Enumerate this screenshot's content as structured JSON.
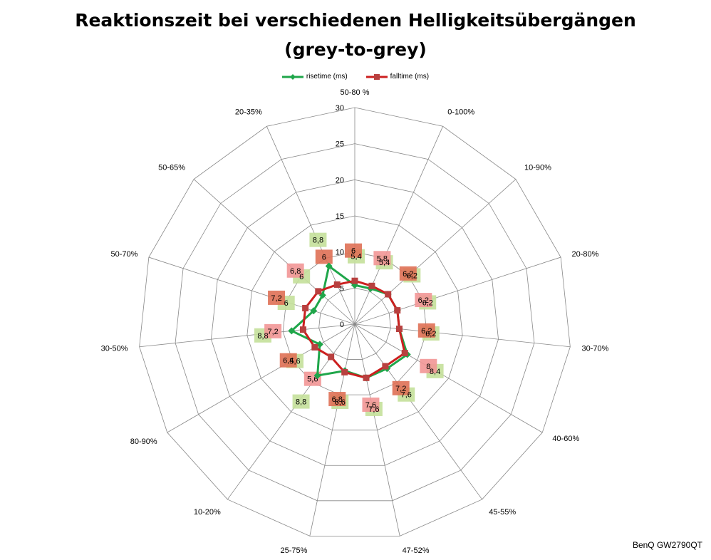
{
  "title_line1": "Reaktionszeit bei verschiedenen Helligkeitsübergängen",
  "title_line2": "(grey-to-grey)",
  "credit": "BenQ GW2790QT",
  "colors": {
    "rise": "#1fa64a",
    "fall": "#cc1f1f",
    "rise_label_bg": "#c4e09a",
    "fall_label_bg_light": "#f29696",
    "fall_label_bg_dark": "#df7055",
    "grid": "#888888"
  },
  "chart_data": {
    "type": "radar",
    "title": "Reaktionszeit bei verschiedenen Helligkeitsübergängen (grey-to-grey)",
    "categories": [
      "50-80 %",
      "0-100%",
      "10-90%",
      "20-80%",
      "30-70%",
      "40-60%",
      "45-55%",
      "47-52%",
      "25-75%",
      "10-20%",
      "80-90%",
      "30-50%",
      "50-70%",
      "50-65%",
      "20-35%"
    ],
    "radial_range": [
      0,
      30
    ],
    "radial_ticks": [
      0,
      5,
      10,
      15,
      20,
      25,
      30
    ],
    "grid": true,
    "legend_position": "top",
    "series": [
      {
        "name": "risetime (ms)",
        "marker": "diamond",
        "values": [
          5.4,
          5.4,
          6.2,
          6.2,
          6.2,
          8.4,
          7.6,
          7.6,
          6.6,
          8.8,
          5.6,
          8.8,
          6.0,
          6.0,
          8.8
        ]
      },
      {
        "name": "falltime (ms)",
        "marker": "square",
        "values": [
          6.0,
          5.8,
          6.2,
          6.2,
          6.2,
          8.0,
          7.2,
          7.6,
          6.8,
          5.6,
          6.4,
          7.2,
          7.2,
          6.8,
          6.0
        ]
      }
    ]
  }
}
